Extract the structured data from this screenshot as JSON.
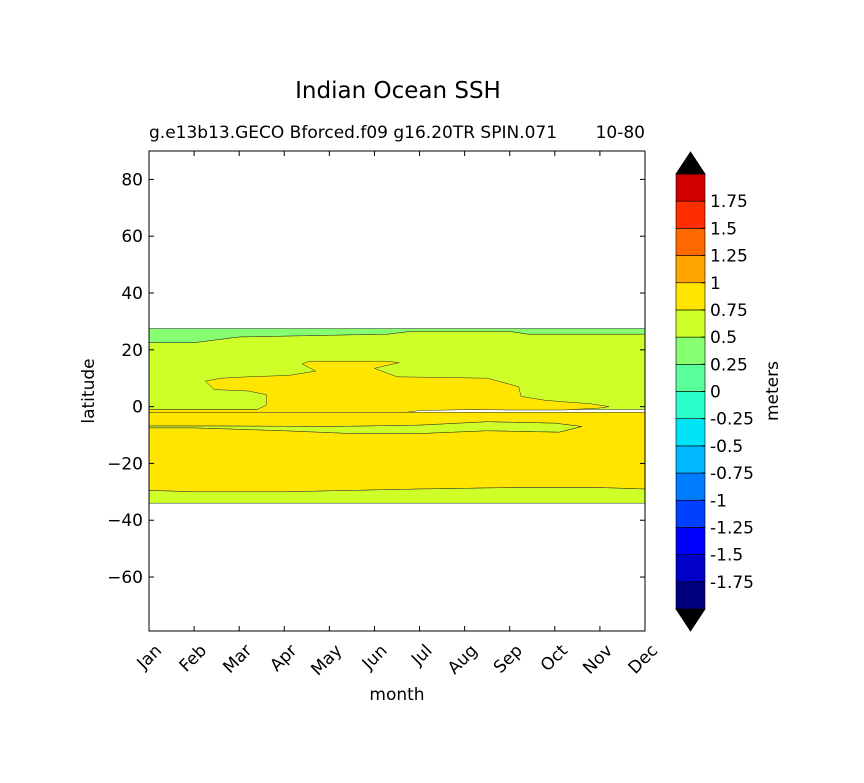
{
  "figure": {
    "title": "Indian Ocean SSH",
    "subtitle": "g.e13b13.GECO Bforced.f09 g16.20TR SPIN.071",
    "subtitle_right": "10-80"
  },
  "chart_data": {
    "type": "heatmap",
    "title": "Indian Ocean SSH",
    "subtitle": "g.e13b13.GECO Bforced.f09 g16.20TR SPIN.071",
    "subtitle_right": "10-80",
    "xlabel": "month",
    "ylabel": "latitude",
    "x_categories": [
      "Jan",
      "Feb",
      "Mar",
      "Apr",
      "May",
      "Jun",
      "Jul",
      "Aug",
      "Sep",
      "Oct",
      "Nov",
      "Dec"
    ],
    "xlim": [
      0,
      11
    ],
    "ylim": [
      -79,
      90
    ],
    "y_ticks": [
      80,
      60,
      40,
      20,
      0,
      -20,
      -40,
      -60
    ],
    "y_tick_labels": [
      "80",
      "60",
      "40",
      "20",
      "0",
      "−20",
      "−40",
      "−60"
    ],
    "data_extent_lat": [
      -34,
      27.5
    ],
    "colorbar": {
      "label": "meters",
      "extend": "both",
      "levels": [
        -2,
        -1.75,
        -1.5,
        -1.25,
        -1,
        -0.75,
        -0.5,
        -0.25,
        0,
        0.25,
        0.5,
        0.75,
        1,
        1.25,
        1.5,
        1.75,
        2
      ],
      "tick_labels": [
        "1.75",
        "1.5",
        "1.25",
        "1",
        "0.75",
        "0.5",
        "0.25",
        "0",
        "-0.25",
        "-0.5",
        "-0.75",
        "-1",
        "-1.25",
        "-1.5",
        "-1.75"
      ],
      "tick_values": [
        1.75,
        1.5,
        1.25,
        1,
        0.75,
        0.5,
        0.25,
        0,
        -0.25,
        -0.5,
        -0.75,
        -1,
        -1.25,
        -1.5,
        -1.75
      ],
      "colors": [
        "#00007f",
        "#0000c8",
        "#0000ff",
        "#0040ff",
        "#007cff",
        "#00b8ff",
        "#00e4f8",
        "#2affcc",
        "#5aff9c",
        "#86ff70",
        "#ceff28",
        "#ffe500",
        "#ffa700",
        "#ff6a00",
        "#ff2e00",
        "#d00000",
        "#7f0000"
      ],
      "under_color": "#00007f",
      "over_color": "#7f0000"
    },
    "regions": [
      {
        "name": "band 0 to 0.25",
        "range": [
          0,
          0.25
        ],
        "color": "#86ff70",
        "points": [
          [
            0,
            27.5
          ],
          [
            11,
            27.5
          ],
          [
            11,
            25.5
          ],
          [
            8.4,
            25.5
          ],
          [
            8.0,
            26.5
          ],
          [
            5.8,
            26.5
          ],
          [
            5.3,
            25.5
          ],
          [
            2.0,
            24.5
          ],
          [
            1.0,
            22.5
          ],
          [
            0,
            22.5
          ]
        ]
      },
      {
        "name": "band 0.25 to 0.5 north",
        "range": [
          0.25,
          0.5
        ],
        "color": "#ceff28",
        "points": [
          [
            0,
            22.5
          ],
          [
            1.0,
            22.5
          ],
          [
            2.0,
            24.5
          ],
          [
            5.3,
            25.5
          ],
          [
            5.8,
            26.5
          ],
          [
            8.0,
            26.5
          ],
          [
            8.4,
            25.5
          ],
          [
            11,
            25.5
          ],
          [
            11,
            -1
          ],
          [
            0,
            -1
          ]
        ]
      },
      {
        "name": "band 0.5 to 0.75 north",
        "range": [
          0.5,
          0.75
        ],
        "color": "#ffe500",
        "points": [
          [
            1.25,
            9
          ],
          [
            1.45,
            6
          ],
          [
            2.2,
            5.5
          ],
          [
            2.6,
            4.2
          ],
          [
            2.6,
            0.5
          ],
          [
            2.4,
            -1
          ],
          [
            0.0,
            -1
          ],
          [
            0.0,
            -2
          ],
          [
            5.7,
            -2
          ],
          [
            6.0,
            -1.4
          ],
          [
            7.2,
            -1
          ],
          [
            8.0,
            -1.2
          ],
          [
            9.2,
            -1.2
          ],
          [
            10.0,
            -0.5
          ],
          [
            10.2,
            0
          ],
          [
            9.8,
            1
          ],
          [
            8.8,
            2.2
          ],
          [
            8.25,
            3.6
          ],
          [
            8.2,
            7
          ],
          [
            7.5,
            10
          ],
          [
            5.5,
            10.5
          ],
          [
            5.0,
            13.5
          ],
          [
            5.55,
            15.5
          ],
          [
            5.25,
            16
          ],
          [
            3.55,
            16
          ],
          [
            3.4,
            15
          ],
          [
            3.7,
            12.5
          ],
          [
            3.1,
            11
          ],
          [
            2.2,
            10.5
          ],
          [
            1.6,
            10
          ]
        ]
      },
      {
        "name": "band 0.25 to 0.5 equatorial",
        "range": [
          0.25,
          0.5
        ],
        "color": "#ceff28",
        "points": [
          [
            0,
            -7.5
          ],
          [
            1.0,
            -7.5
          ],
          [
            3.0,
            -8.5
          ],
          [
            4.5,
            -9.5
          ],
          [
            6.0,
            -9.5
          ],
          [
            7.5,
            -8.5
          ],
          [
            9.1,
            -9
          ],
          [
            9.6,
            -7
          ],
          [
            9.0,
            -5.8
          ],
          [
            7.5,
            -5.3
          ],
          [
            6.0,
            -6.5
          ],
          [
            4.0,
            -7.0
          ],
          [
            1.5,
            -6.8
          ],
          [
            0.0,
            -6.8
          ]
        ]
      },
      {
        "name": "band 0.5 to 0.75 south",
        "range": [
          0.5,
          0.75
        ],
        "color": "#ffe500",
        "points": [
          [
            0,
            -6.8
          ],
          [
            1.5,
            -6.8
          ],
          [
            4.0,
            -7.0
          ],
          [
            6.0,
            -6.5
          ],
          [
            7.5,
            -5.3
          ],
          [
            9.0,
            -5.8
          ],
          [
            9.6,
            -7
          ],
          [
            9.1,
            -9
          ],
          [
            7.5,
            -8.5
          ],
          [
            6.0,
            -9.5
          ],
          [
            4.5,
            -9.5
          ],
          [
            3.0,
            -8.5
          ],
          [
            1.0,
            -7.5
          ],
          [
            0,
            -7.5
          ],
          [
            0,
            -29.5
          ],
          [
            1.0,
            -30
          ],
          [
            3.0,
            -30
          ],
          [
            6.0,
            -29
          ],
          [
            8.0,
            -28.5
          ],
          [
            10.0,
            -28.5
          ],
          [
            11,
            -29
          ],
          [
            11,
            -2
          ],
          [
            5.7,
            -2
          ],
          [
            0,
            -2
          ]
        ]
      },
      {
        "name": "band 0.25 to 0.5 south",
        "range": [
          0.25,
          0.5
        ],
        "color": "#ceff28",
        "points": [
          [
            0,
            -29.5
          ],
          [
            1.0,
            -30
          ],
          [
            3.0,
            -30
          ],
          [
            6.0,
            -29
          ],
          [
            8.0,
            -28.5
          ],
          [
            10.0,
            -28.5
          ],
          [
            11,
            -29
          ],
          [
            11,
            -34
          ],
          [
            0,
            -34
          ]
        ]
      }
    ]
  }
}
